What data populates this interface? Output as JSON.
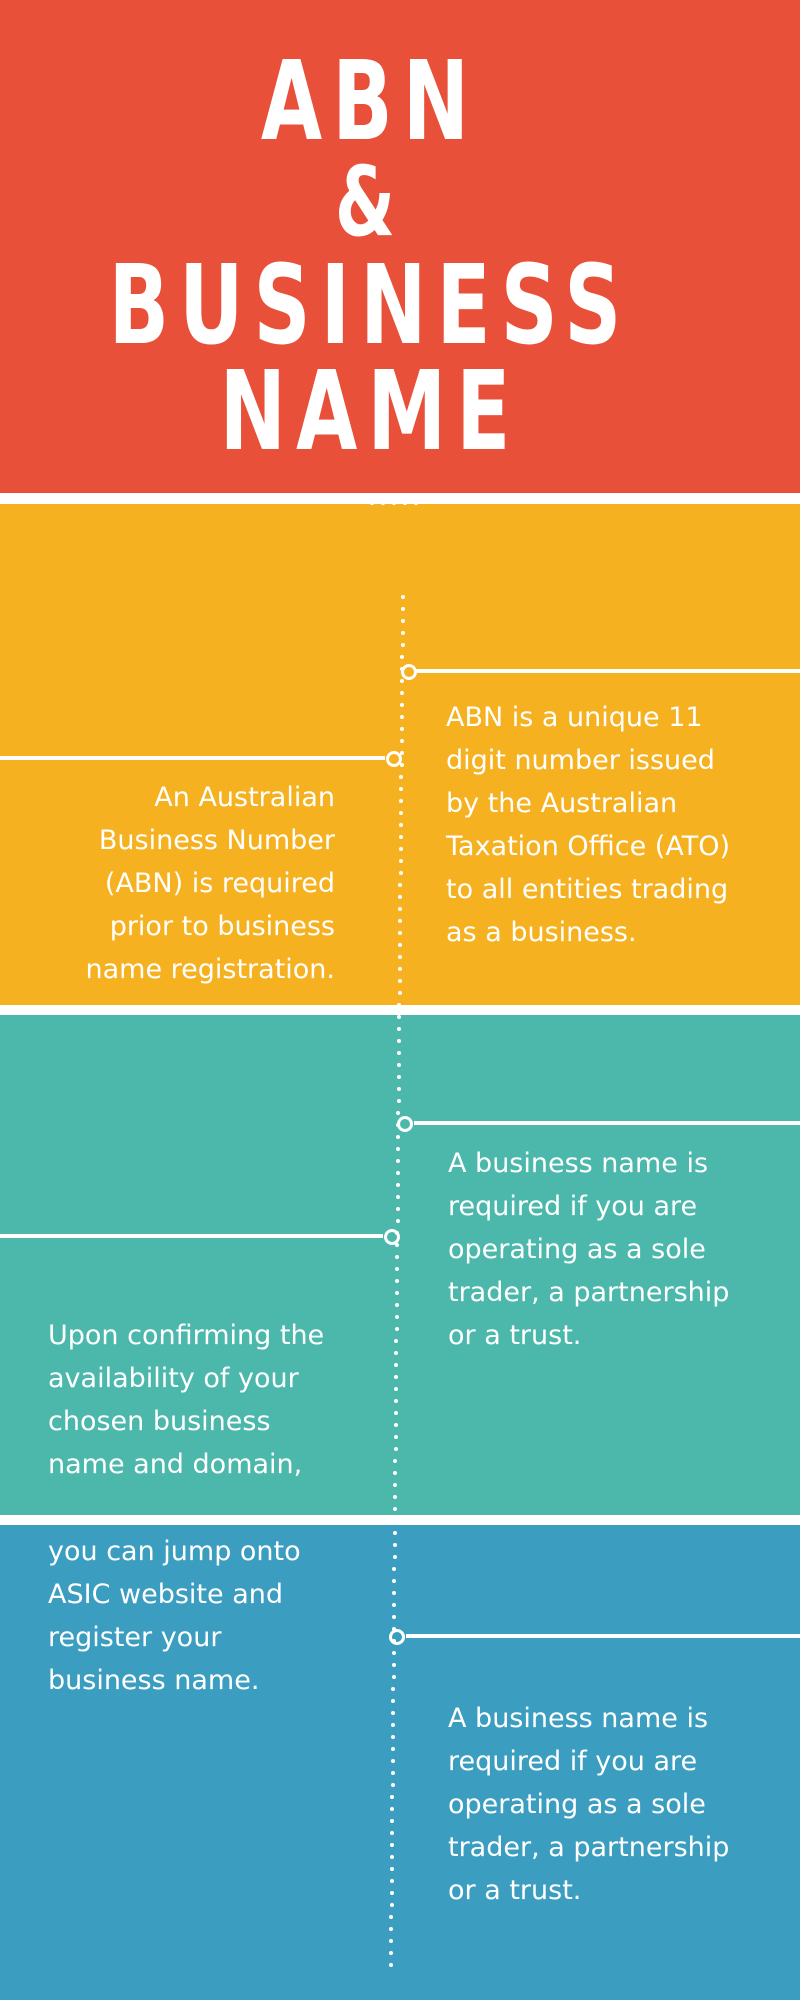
{
  "colors": {
    "title_bg": "#e8503a",
    "yellow_bg": "#f5b120",
    "teal_bg": "#4cb8ac",
    "blue_bg": "#3b9dbf",
    "accent": "#ffffff"
  },
  "title": {
    "line1": "ABN",
    "line2": "&",
    "line3": "BUSINESS",
    "line4": "NAME"
  },
  "section_abn": {
    "right_text": "ABN is a unique 11\ndigit number issued\nby the Australian\nTaxation Office (ATO)\nto all entities trading\nas a business.",
    "left_text": "An Australian\nBusiness Number\n(ABN) is required\nprior to business\nname registration."
  },
  "section_business_name": {
    "right_text": "A business name is\nrequired if you are\noperating as a sole\ntrader, a partnership\nor a trust.",
    "left_text": "Upon confirming the\navailability of your\nchosen business\nname and domain,"
  },
  "section_asic": {
    "left_text": " you can jump onto\nASIC website and\nregister  your\nbusiness name.",
    "right_text": "A business name is\nrequired if you are\noperating as a sole\ntrader, a partnership\nor a trust."
  }
}
